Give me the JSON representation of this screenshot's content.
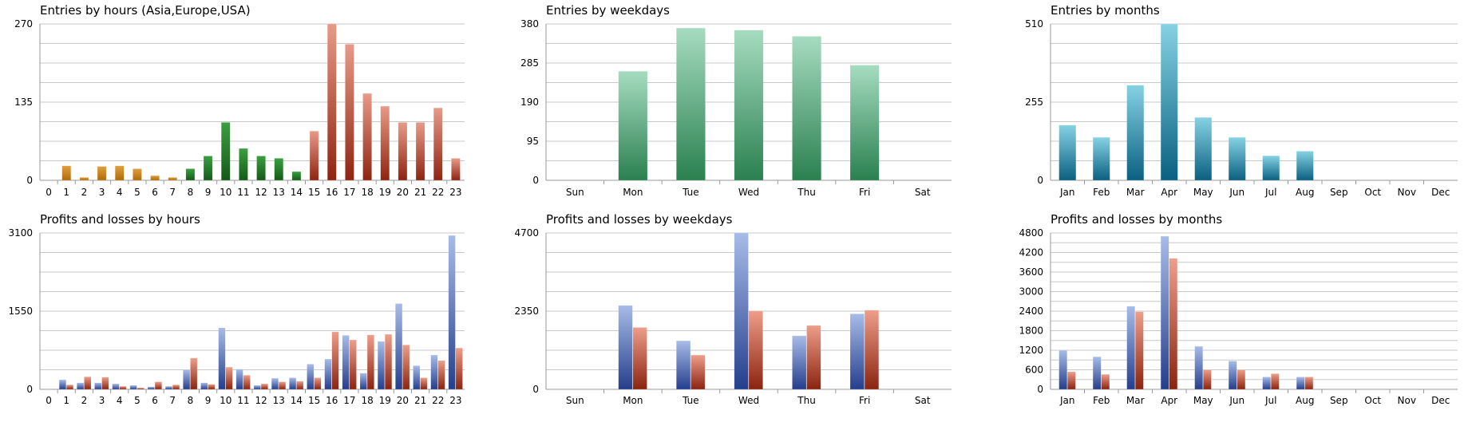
{
  "colors": {
    "grid": "#c8c8c8",
    "axis": "#9a9a9a",
    "hours_asia": "#c07a10",
    "hours_europe": "#1f7a26",
    "hours_usa": "#9a3020",
    "weekdays": "#3a9a64",
    "months": "#1e8aa6",
    "profit": "#3a5aa6",
    "loss": "#a03a22"
  },
  "chart_data": [
    {
      "type": "bar",
      "title": "Entries by hours (Asia,Europe,USA)",
      "categories": [
        "0",
        "1",
        "2",
        "3",
        "4",
        "5",
        "6",
        "7",
        "8",
        "9",
        "10",
        "11",
        "12",
        "13",
        "14",
        "15",
        "16",
        "17",
        "18",
        "19",
        "20",
        "21",
        "22",
        "23"
      ],
      "series": [
        {
          "values": [
            0,
            25,
            5,
            24,
            25,
            20,
            8,
            5,
            20,
            42,
            100,
            55,
            42,
            38,
            15,
            85,
            270,
            235,
            150,
            128,
            100,
            100,
            125,
            38
          ]
        }
      ],
      "ylim": [
        0,
        270
      ],
      "yticks": [
        "0",
        "135",
        "270"
      ],
      "grid": true,
      "color_groups": {
        "asia": [
          0,
          9
        ],
        "europe": [
          8,
          14
        ],
        "usa": [
          15,
          23
        ]
      }
    },
    {
      "type": "bar",
      "title": "Entries by weekdays",
      "categories": [
        "Sun",
        "Mon",
        "Tue",
        "Wed",
        "Thu",
        "Fri",
        "Sat"
      ],
      "series": [
        {
          "values": [
            0,
            265,
            370,
            365,
            350,
            280,
            0
          ]
        }
      ],
      "ylim": [
        0,
        380
      ],
      "yticks": [
        "0",
        "95",
        "190",
        "285",
        "380"
      ],
      "grid": true
    },
    {
      "type": "bar",
      "title": "Entries by months",
      "categories": [
        "Jan",
        "Feb",
        "Mar",
        "Apr",
        "May",
        "Jun",
        "Jul",
        "Aug",
        "Sep",
        "Oct",
        "Nov",
        "Dec"
      ],
      "series": [
        {
          "values": [
            180,
            140,
            310,
            510,
            205,
            140,
            80,
            95,
            0,
            0,
            0,
            0
          ]
        }
      ],
      "ylim": [
        0,
        510
      ],
      "yticks": [
        "0",
        "255",
        "510"
      ],
      "grid": true
    },
    {
      "type": "bar",
      "title": "Profits and losses by hours",
      "categories": [
        "0",
        "1",
        "2",
        "3",
        "4",
        "5",
        "6",
        "7",
        "8",
        "9",
        "10",
        "11",
        "12",
        "13",
        "14",
        "15",
        "16",
        "17",
        "18",
        "19",
        "20",
        "21",
        "22",
        "23"
      ],
      "series": [
        {
          "values": [
            0,
            190,
            130,
            130,
            110,
            80,
            50,
            60,
            390,
            130,
            1220,
            400,
            80,
            220,
            230,
            500,
            600,
            1070,
            320,
            950,
            1700,
            470,
            680,
            3050
          ]
        },
        {
          "values": [
            0,
            90,
            250,
            240,
            60,
            30,
            150,
            90,
            620,
            100,
            440,
            280,
            110,
            150,
            160,
            230,
            1140,
            980,
            1080,
            1090,
            880,
            230,
            570,
            820
          ]
        }
      ],
      "ylim": [
        0,
        3100
      ],
      "yticks": [
        "0",
        "1550",
        "3100"
      ],
      "grid": true
    },
    {
      "type": "bar",
      "title": "Profits and losses by weekdays",
      "categories": [
        "Sun",
        "Mon",
        "Tue",
        "Wed",
        "Thu",
        "Fri",
        "Sat"
      ],
      "series": [
        {
          "values": [
            0,
            2520,
            1460,
            4700,
            1610,
            2270,
            0
          ]
        },
        {
          "values": [
            0,
            1860,
            1030,
            2360,
            1920,
            2380,
            0
          ]
        }
      ],
      "ylim": [
        0,
        4700
      ],
      "yticks": [
        "0",
        "2350",
        "4700"
      ],
      "grid": true
    },
    {
      "type": "bar",
      "title": "Profits and losses by months",
      "categories": [
        "Jan",
        "Feb",
        "Mar",
        "Apr",
        "May",
        "Jun",
        "Jul",
        "Aug",
        "Sep",
        "Oct",
        "Nov",
        "Dec"
      ],
      "series": [
        {
          "values": [
            1200,
            1000,
            2550,
            4700,
            1320,
            870,
            380,
            380,
            0,
            0,
            0,
            0
          ]
        },
        {
          "values": [
            540,
            460,
            2380,
            4020,
            600,
            600,
            480,
            380,
            0,
            0,
            0,
            0
          ]
        }
      ],
      "ylim": [
        0,
        4800
      ],
      "yticks": [
        "0",
        "600",
        "1200",
        "1800",
        "2400",
        "3000",
        "3600",
        "4200",
        "4800"
      ],
      "grid": true
    }
  ]
}
